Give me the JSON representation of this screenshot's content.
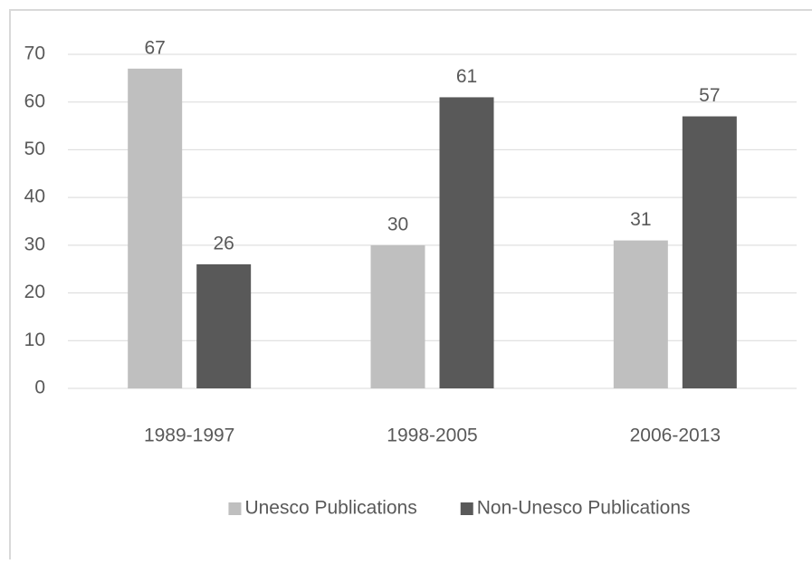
{
  "chart_data": {
    "type": "bar",
    "categories": [
      "1989-1997",
      "1998-2005",
      "2006-2013"
    ],
    "series": [
      {
        "name": "Unesco Publications",
        "color": "#bfbfbf",
        "values": [
          67,
          30,
          31
        ]
      },
      {
        "name": "Non-Unesco Publications",
        "color": "#595959",
        "values": [
          26,
          61,
          57
        ]
      }
    ],
    "ylim": [
      0,
      70
    ],
    "yticks": [
      0,
      10,
      20,
      30,
      40,
      50,
      60,
      70
    ],
    "grid": true,
    "legend": "bottom"
  }
}
